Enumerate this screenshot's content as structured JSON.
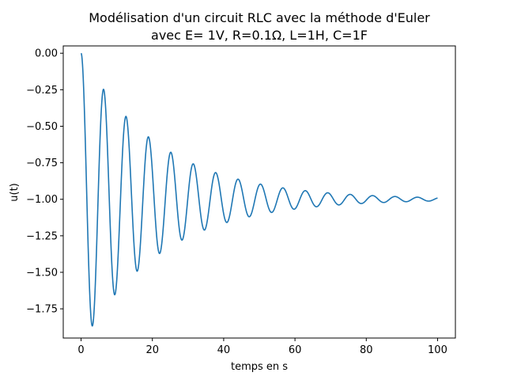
{
  "chart_data": {
    "type": "line",
    "title_lines": [
      "Modélisation d'un circuit RLC avec la méthode d'Euler",
      "avec E= 1V, R=0.1Ω, L=1H, C=1F"
    ],
    "xlabel": "temps en s",
    "ylabel": "u(t)",
    "xlim": [
      -5,
      105
    ],
    "ylim": [
      -1.95,
      0.05
    ],
    "xticks": [
      0,
      20,
      40,
      60,
      80,
      100
    ],
    "xtick_labels": [
      "0",
      "20",
      "40",
      "60",
      "80",
      "100"
    ],
    "yticks": [
      0,
      -0.25,
      -0.5,
      -0.75,
      -1.0,
      -1.25,
      -1.5,
      -1.75
    ],
    "ytick_labels": [
      "0.00",
      "−0.25",
      "−0.50",
      "−0.75",
      "−1.00",
      "−1.25",
      "−1.50",
      "−1.75"
    ],
    "grid": false,
    "line_color": "#1f77b4",
    "series": [
      {
        "model": {
          "E": 1,
          "R": 0.1,
          "L": 1,
          "C": 1,
          "t_start": 0,
          "t_end": 100,
          "dt": 0.01,
          "u0": 0,
          "du0": 0
        }
      }
    ]
  }
}
